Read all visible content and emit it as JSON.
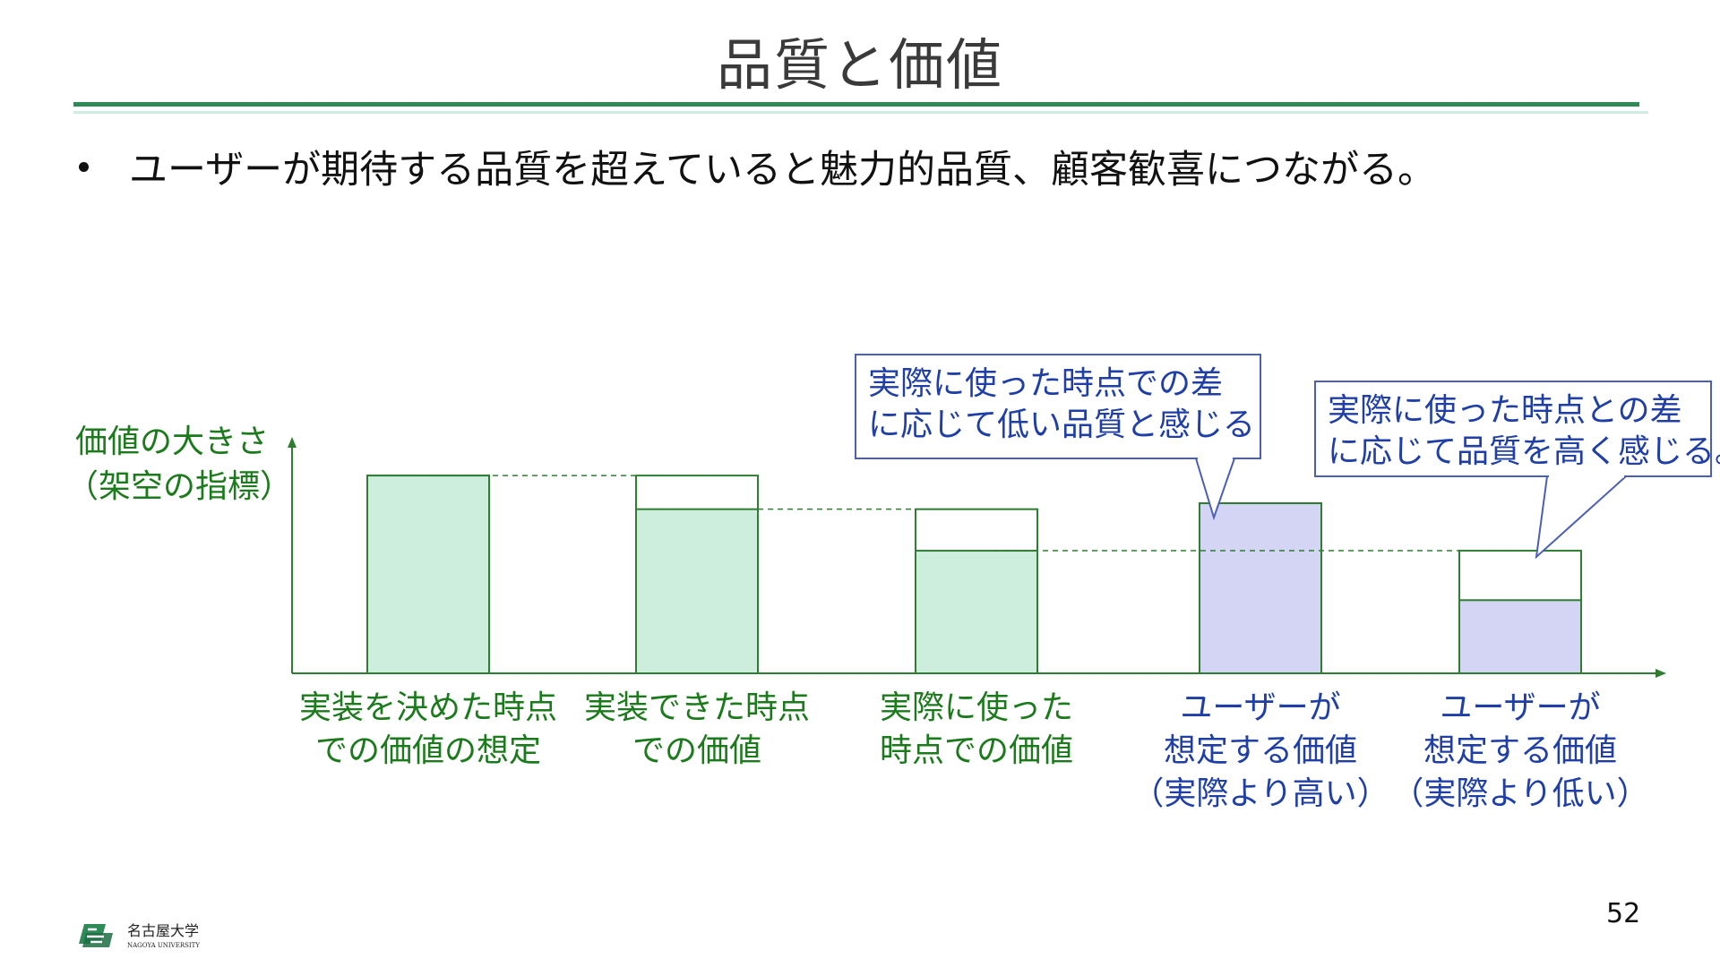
{
  "slide": {
    "title": "品質と価値",
    "bullet": "ユーザーが期待する品質を超えていると魅力的品質、顧客歓喜につながる。",
    "page_number": "52",
    "logo_text": "名古屋大学",
    "logo_subtext": "NAGOYA UNIVERSITY"
  },
  "colors": {
    "rule": "#2e8b57",
    "green_fill": "#cdeedd",
    "green_stroke": "#2e7d32",
    "purple_fill": "#d4d4f5",
    "purple_stroke": "#2e7d32",
    "callout_stroke": "#4a5fb5",
    "callout_text": "#1f3fa6",
    "label_green": "#1b7a1b",
    "label_blue": "#1f3fa6"
  },
  "chart_data": {
    "type": "bar",
    "ylabel_lines": [
      "価値の大きさ",
      "（架空の指標）"
    ],
    "categories": [
      {
        "lines": [
          "実装を決めた時点",
          "での価値の想定"
        ],
        "color": "green"
      },
      {
        "lines": [
          "実装できた時点",
          "での価値"
        ],
        "color": "green"
      },
      {
        "lines": [
          "実際に使った",
          "時点での価値"
        ],
        "color": "green"
      },
      {
        "lines": [
          "ユーザーが",
          "想定する価値",
          "（実際より高い）"
        ],
        "color": "blue"
      },
      {
        "lines": [
          "ユーザーが",
          "想定する価値",
          "（実際より低い）"
        ],
        "color": "blue"
      }
    ],
    "values": [
      100,
      83,
      62,
      86,
      37
    ],
    "outline_tops": [
      100,
      100,
      83,
      86,
      62
    ],
    "fill_colors": [
      "green",
      "green",
      "green",
      "purple",
      "purple"
    ],
    "ylim": [
      0,
      115
    ],
    "callouts": [
      {
        "lines": [
          "実際に使った時点での差",
          "に応じて低い品質と感じる"
        ],
        "target_bar": 3
      },
      {
        "lines": [
          "実際に使った時点との差",
          "に応じて品質を高く感じる。"
        ],
        "target_bar": 4
      }
    ]
  }
}
